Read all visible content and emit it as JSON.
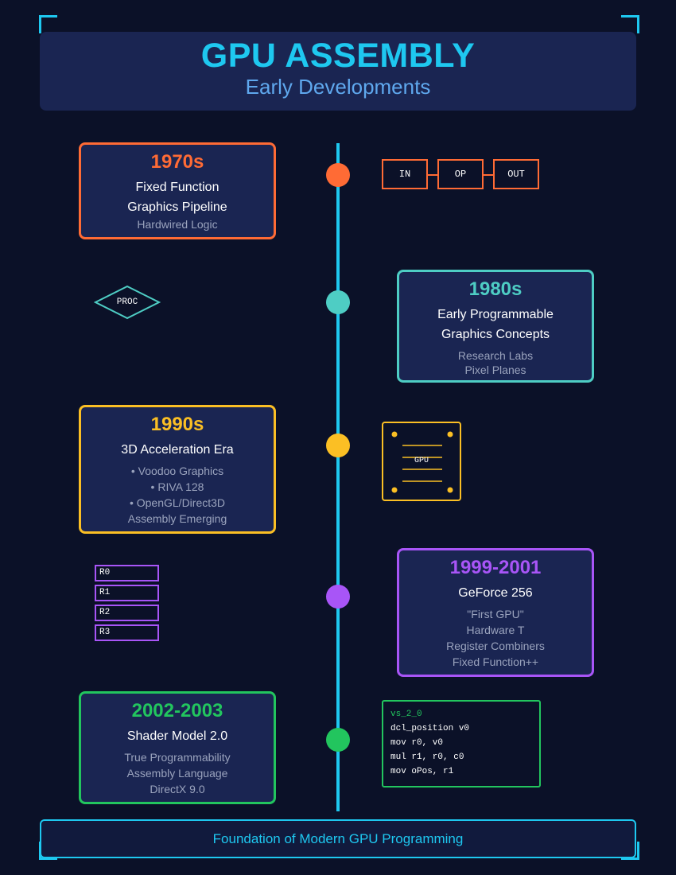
{
  "header": {
    "title": "GPU ASSEMBLY",
    "subtitle": "Early Developments"
  },
  "colors": {
    "accent": "#1ec8f0",
    "c1970s": "#ff6b35",
    "c1980s": "#4ecdc4",
    "c1990s": "#fbbf24",
    "c1999": "#a855f7",
    "c2002": "#22c55e"
  },
  "timeline": [
    {
      "era": "1970s",
      "lines": [
        "Fixed Function",
        "Graphics Pipeline"
      ],
      "subs": [
        "Hardwired Logic"
      ]
    },
    {
      "era": "1980s",
      "lines": [
        "Early Programmable",
        "Graphics Concepts"
      ],
      "subs": [
        "Research Labs",
        "Pixel Planes"
      ]
    },
    {
      "era": "1990s",
      "lines": [
        "3D Acceleration Era"
      ],
      "subs": [
        "• Voodoo Graphics",
        "• RIVA 128",
        "• OpenGL/Direct3D",
        "Assembly Emerging"
      ]
    },
    {
      "era": "1999-2001",
      "lines": [
        "GeForce 256"
      ],
      "subs": [
        "\"First GPU\"",
        "Hardware T",
        "Register Combiners",
        "Fixed Function++"
      ]
    },
    {
      "era": "2002-2003",
      "lines": [
        "Shader Model 2.0"
      ],
      "subs": [
        "True Programmability",
        "Assembly Language",
        "DirectX 9.0"
      ]
    }
  ],
  "pipeline": [
    "IN",
    "OP",
    "OUT"
  ],
  "proc_label": "PROC",
  "chip_label": "GPU",
  "registers": [
    "R0",
    "R1",
    "R2",
    "R3"
  ],
  "code": [
    "vs_2_0",
    "dcl_position v0",
    "mov r0, v0",
    "mul r1, r0, c0",
    "mov oPos, r1"
  ],
  "footer": "Foundation of Modern GPU Programming"
}
